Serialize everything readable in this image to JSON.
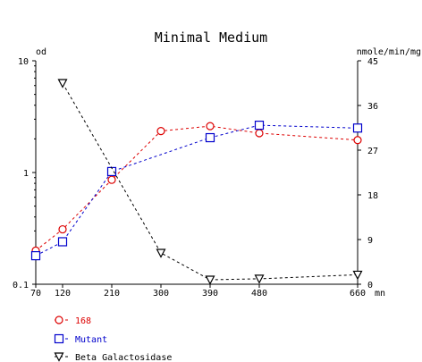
{
  "chart_data": {
    "type": "line",
    "title": "Minimal Medium",
    "left_axis": {
      "label": "od",
      "scale": "log",
      "range": [
        0.1,
        10
      ],
      "ticks": [
        {
          "value": 0.1,
          "label": "0.1"
        },
        {
          "value": 1,
          "label": "1"
        },
        {
          "value": 10,
          "label": "10"
        }
      ]
    },
    "right_axis": {
      "label": "nmole/min/mg",
      "scale": "linear",
      "range": [
        0,
        45
      ],
      "ticks": [
        {
          "value": 0,
          "label": "0"
        },
        {
          "value": 9,
          "label": "9"
        },
        {
          "value": 18,
          "label": "18"
        },
        {
          "value": 27,
          "label": "27"
        },
        {
          "value": 36,
          "label": "36"
        },
        {
          "value": 45,
          "label": "45"
        }
      ]
    },
    "x_axis": {
      "unit_label": "mn",
      "range": [
        70,
        660
      ],
      "ticks": [
        {
          "value": 70,
          "label": "70"
        },
        {
          "value": 120,
          "label": "120"
        },
        {
          "value": 210,
          "label": "210"
        },
        {
          "value": 300,
          "label": "300"
        },
        {
          "value": 390,
          "label": "390"
        },
        {
          "value": 480,
          "label": "480"
        },
        {
          "value": 660,
          "label": "660"
        }
      ]
    },
    "grid": false,
    "legend_position": "bottom-left",
    "series": [
      {
        "name": "168",
        "axis": "left",
        "marker": "circle",
        "color": "#dd0000",
        "x": [
          70,
          120,
          210,
          300,
          390,
          480,
          660
        ],
        "y": [
          0.2,
          0.31,
          0.86,
          2.35,
          2.6,
          2.25,
          1.95
        ]
      },
      {
        "name": "Mutant",
        "axis": "left",
        "marker": "square",
        "color": "#0000cc",
        "x": [
          70,
          120,
          210,
          300,
          390,
          480,
          660
        ],
        "y": [
          0.18,
          0.24,
          1.02,
          null,
          2.05,
          2.65,
          2.5
        ]
      },
      {
        "name": "Beta Galactosidase",
        "axis": "right",
        "marker": "triangle-down",
        "color": "#000000",
        "x": [
          120,
          300,
          390,
          480,
          660
        ],
        "y": [
          40.5,
          6.3,
          0.9,
          1.1,
          1.9
        ]
      }
    ]
  }
}
